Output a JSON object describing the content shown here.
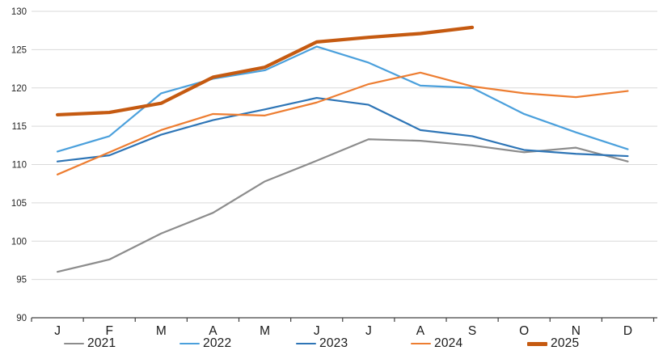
{
  "chart_data": {
    "type": "line",
    "title": "",
    "xlabel": "",
    "ylabel": "",
    "categories": [
      "J",
      "F",
      "M",
      "A",
      "M",
      "J",
      "J",
      "A",
      "S",
      "O",
      "N",
      "D"
    ],
    "y_axis": {
      "min": 90,
      "max": 130,
      "step": 5,
      "tick_labels": [
        "90",
        "95",
        "100",
        "105",
        "110",
        "115",
        "120",
        "125",
        "130"
      ]
    },
    "grid": "horizontal",
    "legend_position": "bottom",
    "series": [
      {
        "name": "2021",
        "color": "#8C8C8C",
        "stroke_width": 2.2,
        "values": [
          96.0,
          97.6,
          101.0,
          103.7,
          107.8,
          110.5,
          113.3,
          113.1,
          112.5,
          111.6,
          112.2,
          110.4
        ]
      },
      {
        "name": "2022",
        "color": "#4BA0DC",
        "stroke_width": 2.2,
        "values": [
          111.7,
          113.7,
          119.3,
          121.2,
          122.3,
          125.4,
          123.3,
          120.3,
          120.0,
          116.6,
          114.2,
          112.0
        ]
      },
      {
        "name": "2023",
        "color": "#2E75B6",
        "stroke_width": 2.2,
        "values": [
          110.4,
          111.2,
          113.9,
          115.8,
          117.2,
          118.7,
          117.8,
          114.5,
          113.7,
          111.9,
          111.4,
          111.1
        ]
      },
      {
        "name": "2024",
        "color": "#ED7D31",
        "stroke_width": 2.2,
        "values": [
          108.7,
          111.6,
          114.5,
          116.6,
          116.4,
          118.1,
          120.5,
          122.0,
          120.2,
          119.3,
          118.8,
          119.6
        ]
      },
      {
        "name": "2025",
        "color": "#C55A11",
        "stroke_width": 4.2,
        "values": [
          116.5,
          116.8,
          118.0,
          121.4,
          122.7,
          126.0,
          126.6,
          127.1,
          127.9,
          null,
          null,
          null
        ]
      }
    ],
    "colors": {
      "gridline": "#D9D9D9",
      "axis_line": "#404040",
      "tick_label": "#262626",
      "month_label": "#1a1a1a",
      "background": "#ffffff"
    }
  }
}
